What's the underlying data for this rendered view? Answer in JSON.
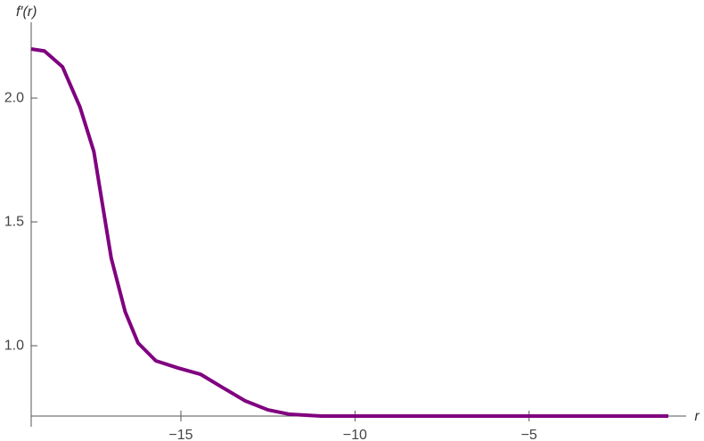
{
  "chart_data": {
    "type": "line",
    "x_label": "r",
    "y_label": "f′(r)",
    "x": [
      -19.3,
      -18.92,
      -18.4,
      -17.9,
      -17.5,
      -17.25,
      -17.0,
      -16.6,
      -16.23,
      -15.72,
      -15.08,
      -14.44,
      -13.8,
      -13.15,
      -12.5,
      -11.87,
      -10.97,
      -1
    ],
    "series": [
      {
        "color": "#800080",
        "values": [
          2.198,
          2.19,
          2.126,
          1.964,
          1.784,
          1.568,
          1.353,
          1.137,
          1.011,
          0.939,
          0.91,
          0.885,
          0.831,
          0.777,
          0.741,
          0.723,
          0.716,
          0.716
        ]
      }
    ],
    "xlim": [
      -19.3,
      -1
    ],
    "ylim": [
      0.716,
      2.27
    ],
    "xticks": [
      {
        "value": -15,
        "label": "−15"
      },
      {
        "value": -10,
        "label": "−10"
      },
      {
        "value": -5,
        "label": "−5"
      }
    ],
    "yticks": [
      {
        "value": 1,
        "label": "1.0"
      },
      1.5,
      {
        "value": 2,
        "label": "2.0"
      }
    ]
  }
}
